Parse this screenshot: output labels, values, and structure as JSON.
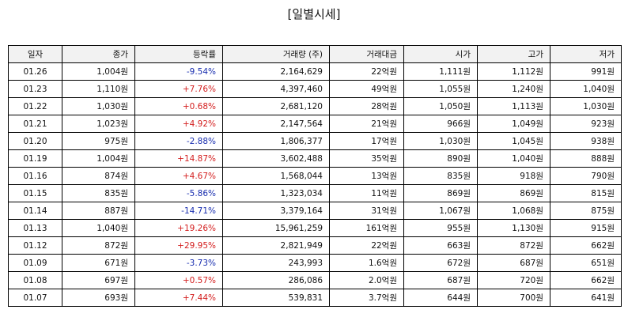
{
  "title": "[일별시세]",
  "colors": {
    "up": "#d42020",
    "down": "#1a2fb0",
    "header_bg": "#f2f2f2",
    "border": "#000000"
  },
  "columns": [
    "일자",
    "종가",
    "등락률",
    "거래량 (주)",
    "거래대금",
    "시가",
    "고가",
    "저가"
  ],
  "rows": [
    {
      "date": "01.26",
      "close": "1,004원",
      "change": "-9.54%",
      "dir": "down",
      "volume": "2,164,629",
      "amount": "22억원",
      "open": "1,111원",
      "high": "1,112원",
      "low": "991원"
    },
    {
      "date": "01.23",
      "close": "1,110원",
      "change": "+7.76%",
      "dir": "up",
      "volume": "4,397,460",
      "amount": "49억원",
      "open": "1,055원",
      "high": "1,240원",
      "low": "1,040원"
    },
    {
      "date": "01.22",
      "close": "1,030원",
      "change": "+0.68%",
      "dir": "up",
      "volume": "2,681,120",
      "amount": "28억원",
      "open": "1,050원",
      "high": "1,113원",
      "low": "1,030원"
    },
    {
      "date": "01.21",
      "close": "1,023원",
      "change": "+4.92%",
      "dir": "up",
      "volume": "2,147,564",
      "amount": "21억원",
      "open": "966원",
      "high": "1,049원",
      "low": "923원"
    },
    {
      "date": "01.20",
      "close": "975원",
      "change": "-2.88%",
      "dir": "down",
      "volume": "1,806,377",
      "amount": "17억원",
      "open": "1,030원",
      "high": "1,045원",
      "low": "938원"
    },
    {
      "date": "01.19",
      "close": "1,004원",
      "change": "+14.87%",
      "dir": "up",
      "volume": "3,602,488",
      "amount": "35억원",
      "open": "890원",
      "high": "1,040원",
      "low": "888원"
    },
    {
      "date": "01.16",
      "close": "874원",
      "change": "+4.67%",
      "dir": "up",
      "volume": "1,568,044",
      "amount": "13억원",
      "open": "835원",
      "high": "918원",
      "low": "790원"
    },
    {
      "date": "01.15",
      "close": "835원",
      "change": "-5.86%",
      "dir": "down",
      "volume": "1,323,034",
      "amount": "11억원",
      "open": "869원",
      "high": "869원",
      "low": "815원"
    },
    {
      "date": "01.14",
      "close": "887원",
      "change": "-14.71%",
      "dir": "down",
      "volume": "3,379,164",
      "amount": "31억원",
      "open": "1,067원",
      "high": "1,068원",
      "low": "875원"
    },
    {
      "date": "01.13",
      "close": "1,040원",
      "change": "+19.26%",
      "dir": "up",
      "volume": "15,961,259",
      "amount": "161억원",
      "open": "955원",
      "high": "1,130원",
      "low": "915원"
    },
    {
      "date": "01.12",
      "close": "872원",
      "change": "+29.95%",
      "dir": "up",
      "volume": "2,821,949",
      "amount": "22억원",
      "open": "663원",
      "high": "872원",
      "low": "662원"
    },
    {
      "date": "01.09",
      "close": "671원",
      "change": "-3.73%",
      "dir": "down",
      "volume": "243,993",
      "amount": "1.6억원",
      "open": "672원",
      "high": "687원",
      "low": "651원"
    },
    {
      "date": "01.08",
      "close": "697원",
      "change": "+0.57%",
      "dir": "up",
      "volume": "286,086",
      "amount": "2.0억원",
      "open": "687원",
      "high": "720원",
      "low": "662원"
    },
    {
      "date": "01.07",
      "close": "693원",
      "change": "+7.44%",
      "dir": "up",
      "volume": "539,831",
      "amount": "3.7억원",
      "open": "644원",
      "high": "700원",
      "low": "641원"
    }
  ]
}
